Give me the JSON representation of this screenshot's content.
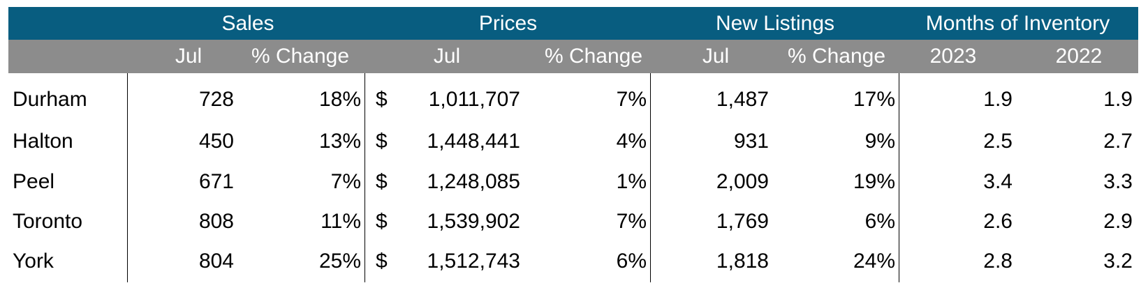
{
  "header": {
    "groups": [
      "Sales",
      "Prices",
      "New Listings",
      "Months of Inventory"
    ],
    "subheaders": [
      "Jul",
      "% Change",
      "Jul",
      "% Change",
      "Jul",
      "% Change",
      "2023",
      "2022"
    ]
  },
  "currency_symbol": "$",
  "rows": [
    {
      "region": "Durham",
      "sales": "728",
      "sales_change": "18%",
      "price": "1,011,707",
      "price_change": "7%",
      "listings": "1,487",
      "listings_change": "17%",
      "inv_2023": "1.9",
      "inv_2022": "1.9"
    },
    {
      "region": "Halton",
      "sales": "450",
      "sales_change": "13%",
      "price": "1,448,441",
      "price_change": "4%",
      "listings": "931",
      "listings_change": "9%",
      "inv_2023": "2.5",
      "inv_2022": "2.7"
    },
    {
      "region": "Peel",
      "sales": "671",
      "sales_change": "7%",
      "price": "1,248,085",
      "price_change": "1%",
      "listings": "2,009",
      "listings_change": "19%",
      "inv_2023": "3.4",
      "inv_2022": "3.3"
    },
    {
      "region": "Toronto",
      "sales": "808",
      "sales_change": "11%",
      "price": "1,539,902",
      "price_change": "7%",
      "listings": "1,769",
      "listings_change": "6%",
      "inv_2023": "2.6",
      "inv_2022": "2.9"
    },
    {
      "region": "York",
      "sales": "804",
      "sales_change": "25%",
      "price": "1,512,743",
      "price_change": "6%",
      "listings": "1,818",
      "listings_change": "24%",
      "inv_2023": "2.8",
      "inv_2022": "3.2"
    }
  ],
  "colors": {
    "header_bg": "#085d80",
    "subheader_bg": "#8c8c8c",
    "header_text": "#ffffff"
  }
}
